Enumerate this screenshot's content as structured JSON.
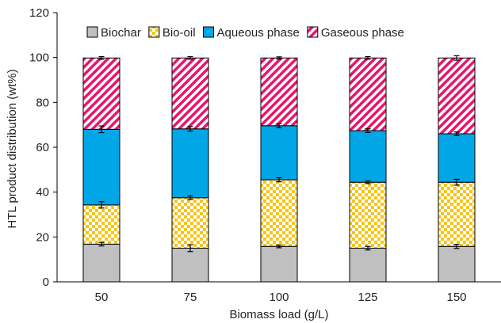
{
  "chart_data": {
    "type": "bar",
    "stacked": true,
    "title": "",
    "xlabel": "Biomass load (g/L)",
    "ylabel": "HTL product distribution (wt%)",
    "ylim": [
      0,
      120
    ],
    "ytick_step": 20,
    "grid": false,
    "legend_position": "top",
    "categories": [
      "50",
      "75",
      "100",
      "125",
      "150"
    ],
    "series": [
      {
        "name": "Biochar",
        "values": [
          16.8,
          15.0,
          15.8,
          15.0,
          15.8
        ],
        "errors": [
          0.8,
          1.5,
          0.6,
          0.8,
          0.9
        ],
        "color": "#c0c0c0",
        "pattern": "solid"
      },
      {
        "name": "Bio-oil",
        "values": [
          17.5,
          22.5,
          29.7,
          29.4,
          28.6
        ],
        "errors": [
          1.4,
          0.8,
          0.9,
          0.6,
          1.3
        ],
        "color": "#f5c518",
        "pattern": "checkerboard"
      },
      {
        "name": "Aqueous phase",
        "values": [
          33.7,
          30.7,
          24.1,
          23.0,
          21.6
        ],
        "errors": [
          1.5,
          1.0,
          0.9,
          0.8,
          0.8
        ],
        "color": "#00a6e6",
        "pattern": "solid"
      },
      {
        "name": "Gaseous phase",
        "values": [
          31.8,
          31.6,
          30.2,
          32.4,
          33.8
        ],
        "errors": [
          0.6,
          0.6,
          0.5,
          0.6,
          1.0
        ],
        "color": "#e8156b",
        "pattern": "diagonal-stripes"
      }
    ]
  }
}
